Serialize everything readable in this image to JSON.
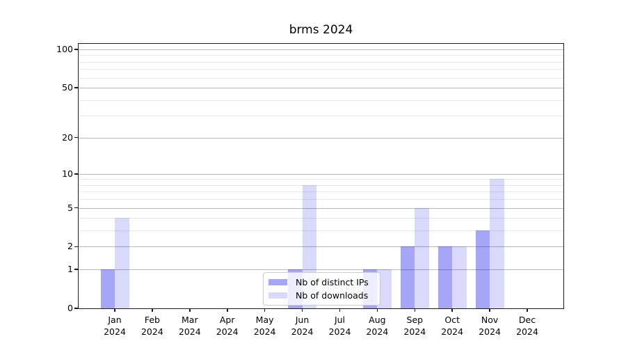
{
  "chart_data": {
    "type": "bar",
    "title": "brms 2024",
    "year_label": "2024",
    "categories": [
      "Jan",
      "Feb",
      "Mar",
      "Apr",
      "May",
      "Jun",
      "Jul",
      "Aug",
      "Sep",
      "Oct",
      "Nov",
      "Dec"
    ],
    "series": [
      {
        "name": "Nb of distinct IPs",
        "fill": "rgba(0,0,238,0.35)",
        "values": [
          1,
          0,
          0,
          0,
          0,
          1,
          0,
          1,
          2,
          2,
          3,
          0
        ]
      },
      {
        "name": "Nb of downloads",
        "fill": "rgba(0,0,238,0.15)",
        "values": [
          4,
          0,
          0,
          0,
          0,
          8,
          0,
          1,
          5,
          2,
          9,
          0
        ]
      }
    ],
    "yscale": "log1p",
    "ylim": [
      0,
      110.5
    ],
    "y_major_ticks": [
      0,
      1,
      2,
      5,
      10,
      20,
      50,
      100
    ],
    "y_minor_ticks": [
      3,
      4,
      6,
      7,
      8,
      9,
      30,
      40,
      60,
      70,
      80,
      90
    ],
    "xlabel": "",
    "ylabel": "",
    "grid": "horizontal-only",
    "legend_position": "lower-center-inside"
  },
  "colors": {
    "background": "#ffffff",
    "spine": "#1c1c1c",
    "major_gridline": "#b9b9b9",
    "minor_gridline": "#e8e8e8",
    "tick_text": "#000000",
    "bar_distinct_ips_on_white": "#a9a9f8",
    "bar_downloads_on_white": "#dadaf9",
    "legend_border": "#cccccc",
    "legend_background": "rgba(255,255,255,0.8)"
  }
}
